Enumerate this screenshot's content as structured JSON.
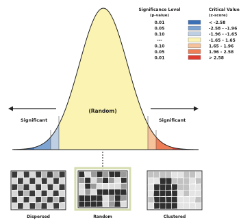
{
  "legend": {
    "sig_header": [
      "Significance Level",
      "(p-value)"
    ],
    "crit_header": [
      "Critical Value",
      "(z-score)"
    ],
    "rows": [
      {
        "p": "0.01",
        "z": "< -2.58",
        "color": "#3b6fb6"
      },
      {
        "p": "0.05",
        "z": "-2.58 - -1.96",
        "color": "#7ea4d3"
      },
      {
        "p": "0.10",
        "z": "-1.96 - -1.65",
        "color": "#bfcfe3"
      },
      {
        "p": "---",
        "z": "-1.65 - 1.65",
        "color": "#fbf3b2"
      },
      {
        "p": "0.10",
        "z": "1.65 - 1.96",
        "color": "#f6c29a"
      },
      {
        "p": "0.05",
        "z": "1.96 - 2.58",
        "color": "#ef7d55"
      },
      {
        "p": "0.01",
        "z": "> 2.58",
        "color": "#e03b31"
      }
    ]
  },
  "curve": {
    "center_label": "(Random)",
    "left_label": "Significant",
    "right_label": "Significant"
  },
  "patterns": [
    {
      "label": "Dispersed"
    },
    {
      "label": "Random"
    },
    {
      "label": "Clustered"
    }
  ]
}
